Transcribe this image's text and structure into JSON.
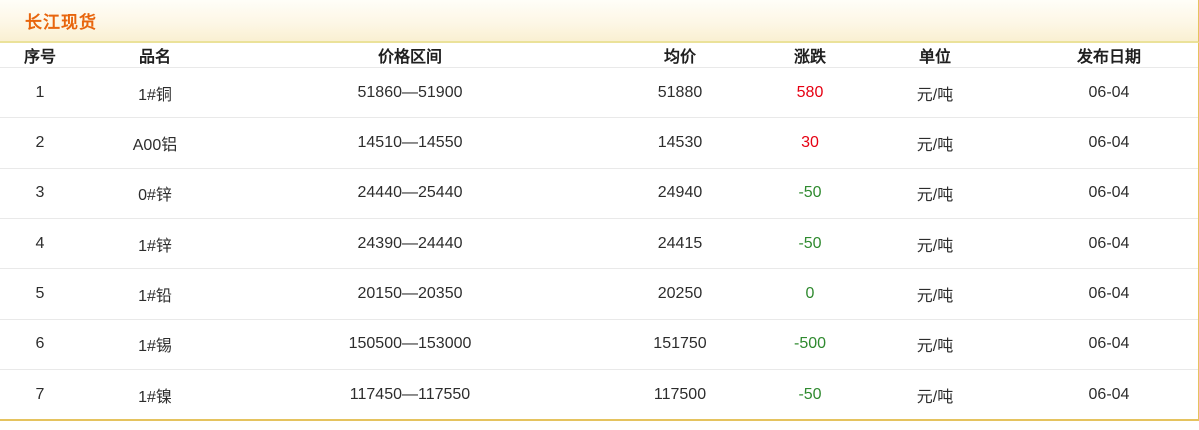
{
  "panel": {
    "title": "长江现货",
    "colors": {
      "title_text": "#e8650d",
      "border_gold": "#e5c35f",
      "title_border": "#ebe29a",
      "row_separator": "#e9e9e9",
      "change_up": "#e60012",
      "change_down": "#2f8a2f"
    }
  },
  "table": {
    "columns": [
      "序号",
      "品名",
      "价格区间",
      "均价",
      "涨跌",
      "单位",
      "发布日期"
    ],
    "rows": [
      {
        "no": "1",
        "name": "1#铜",
        "range": "51860—51900",
        "avg": "51880",
        "change": "580",
        "trend": "up",
        "unit": "元/吨",
        "date": "06-04"
      },
      {
        "no": "2",
        "name": "A00铝",
        "range": "14510—14550",
        "avg": "14530",
        "change": "30",
        "trend": "up",
        "unit": "元/吨",
        "date": "06-04"
      },
      {
        "no": "3",
        "name": "0#锌",
        "range": "24440—25440",
        "avg": "24940",
        "change": "-50",
        "trend": "down",
        "unit": "元/吨",
        "date": "06-04"
      },
      {
        "no": "4",
        "name": "1#锌",
        "range": "24390—24440",
        "avg": "24415",
        "change": "-50",
        "trend": "down",
        "unit": "元/吨",
        "date": "06-04"
      },
      {
        "no": "5",
        "name": "1#铅",
        "range": "20150—20350",
        "avg": "20250",
        "change": "0",
        "trend": "down",
        "unit": "元/吨",
        "date": "06-04"
      },
      {
        "no": "6",
        "name": "1#锡",
        "range": "150500—153000",
        "avg": "151750",
        "change": "-500",
        "trend": "down",
        "unit": "元/吨",
        "date": "06-04"
      },
      {
        "no": "7",
        "name": "1#镍",
        "range": "117450—117550",
        "avg": "117500",
        "change": "-50",
        "trend": "down",
        "unit": "元/吨",
        "date": "06-04"
      }
    ]
  }
}
